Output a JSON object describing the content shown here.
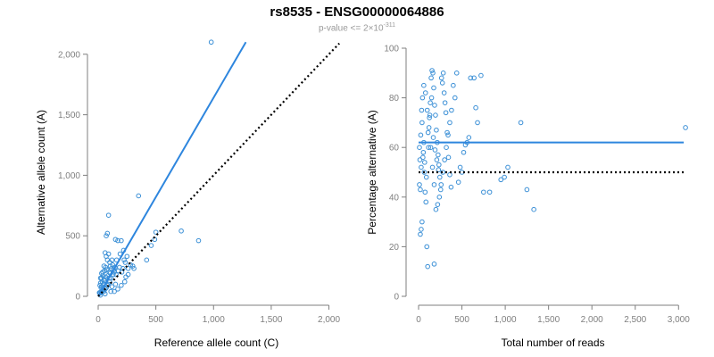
{
  "header": {
    "title": "rs8535 - ENSG00000064886",
    "subtitle_prefix": "p-value <= 2×10",
    "subtitle_exponent": "-311"
  },
  "colors": {
    "points": "#3a8fd6",
    "fit_line": "#2e86de",
    "reference_line": "#000000",
    "axis": "#7f7f7f"
  },
  "chart_data": [
    {
      "type": "scatter",
      "title": "",
      "xlabel": "Reference allele count (C)",
      "ylabel": "Alternative allele count (A)",
      "xlim": [
        0,
        2050
      ],
      "ylim": [
        0,
        2050
      ],
      "xticks": [
        0,
        500,
        1000,
        1500,
        2000
      ],
      "xtick_labels": [
        "0",
        "500",
        "1,000",
        "1,500",
        "2,000"
      ],
      "yticks": [
        0,
        500,
        1000,
        1500,
        2000
      ],
      "ytick_labels": [
        "0",
        "500",
        "1,000",
        "1,500",
        "2,000"
      ],
      "grid": false,
      "lines": [
        {
          "name": "fit",
          "style": "solid",
          "x": [
            0,
            1280
          ],
          "y": [
            0,
            2100
          ]
        },
        {
          "name": "expected",
          "style": "dotted",
          "x": [
            0,
            2090
          ],
          "y": [
            0,
            2090
          ]
        }
      ],
      "points": [
        [
          980,
          2100
        ],
        [
          350,
          830
        ],
        [
          720,
          540
        ],
        [
          870,
          460
        ],
        [
          500,
          530
        ],
        [
          490,
          470
        ],
        [
          460,
          420
        ],
        [
          420,
          300
        ],
        [
          90,
          670
        ],
        [
          80,
          520
        ],
        [
          70,
          500
        ],
        [
          60,
          360
        ],
        [
          50,
          250
        ],
        [
          40,
          200
        ],
        [
          30,
          150
        ],
        [
          20,
          110
        ],
        [
          30,
          80
        ],
        [
          40,
          60
        ],
        [
          50,
          40
        ],
        [
          60,
          20
        ],
        [
          20,
          10
        ],
        [
          10,
          30
        ],
        [
          100,
          280
        ],
        [
          120,
          300
        ],
        [
          150,
          470
        ],
        [
          170,
          460
        ],
        [
          200,
          460
        ],
        [
          220,
          380
        ],
        [
          250,
          330
        ],
        [
          280,
          260
        ],
        [
          300,
          250
        ],
        [
          310,
          230
        ],
        [
          190,
          350
        ],
        [
          160,
          300
        ],
        [
          140,
          200
        ],
        [
          130,
          180
        ],
        [
          110,
          150
        ],
        [
          100,
          120
        ],
        [
          90,
          100
        ],
        [
          80,
          90
        ],
        [
          70,
          70
        ],
        [
          60,
          60
        ],
        [
          45,
          55
        ],
        [
          35,
          45
        ],
        [
          25,
          35
        ],
        [
          15,
          25
        ],
        [
          55,
          210
        ],
        [
          65,
          240
        ],
        [
          75,
          220
        ],
        [
          95,
          200
        ],
        [
          105,
          250
        ],
        [
          115,
          230
        ],
        [
          125,
          260
        ],
        [
          135,
          220
        ],
        [
          145,
          240
        ],
        [
          155,
          180
        ],
        [
          175,
          210
        ],
        [
          185,
          240
        ],
        [
          205,
          200
        ],
        [
          215,
          230
        ],
        [
          225,
          300
        ],
        [
          235,
          280
        ],
        [
          240,
          160
        ],
        [
          260,
          230
        ],
        [
          170,
          60
        ],
        [
          140,
          40
        ],
        [
          120,
          80
        ],
        [
          150,
          100
        ],
        [
          110,
          40
        ],
        [
          200,
          90
        ],
        [
          230,
          120
        ],
        [
          260,
          180
        ],
        [
          30,
          190
        ],
        [
          40,
          170
        ],
        [
          50,
          140
        ],
        [
          20,
          150
        ],
        [
          15,
          90
        ],
        [
          25,
          70
        ],
        [
          35,
          120
        ],
        [
          45,
          100
        ],
        [
          55,
          130
        ],
        [
          65,
          160
        ],
        [
          85,
          170
        ],
        [
          95,
          150
        ],
        [
          105,
          190
        ],
        [
          70,
          330
        ],
        [
          80,
          300
        ],
        [
          90,
          350
        ]
      ]
    },
    {
      "type": "scatter",
      "title": "",
      "xlabel": "Total number of reads",
      "ylabel": "Percentage alternative (A)",
      "xlim": [
        0,
        3100
      ],
      "ylim": [
        0,
        100
      ],
      "xticks": [
        0,
        500,
        1000,
        1500,
        2000,
        2500,
        3000
      ],
      "xtick_labels": [
        "0",
        "500",
        "1,000",
        "1,500",
        "2,000",
        "2,500",
        "3,000"
      ],
      "yticks": [
        0,
        20,
        40,
        60,
        80,
        100
      ],
      "ytick_labels": [
        "0",
        "20",
        "40",
        "60",
        "80",
        "100"
      ],
      "grid": false,
      "lines": [
        {
          "name": "fit",
          "style": "solid",
          "x": [
            0,
            3060
          ],
          "y": [
            62,
            62
          ]
        },
        {
          "name": "expected",
          "style": "dotted",
          "x": [
            0,
            3060
          ],
          "y": [
            50,
            50
          ]
        }
      ],
      "points": [
        [
          3080,
          68
        ],
        [
          1330,
          35
        ],
        [
          1250,
          43
        ],
        [
          1180,
          70
        ],
        [
          1030,
          52
        ],
        [
          990,
          48
        ],
        [
          950,
          47
        ],
        [
          820,
          42
        ],
        [
          750,
          42
        ],
        [
          720,
          89
        ],
        [
          680,
          70
        ],
        [
          660,
          76
        ],
        [
          640,
          88
        ],
        [
          600,
          88
        ],
        [
          580,
          64
        ],
        [
          560,
          62
        ],
        [
          540,
          61
        ],
        [
          520,
          58
        ],
        [
          500,
          50
        ],
        [
          480,
          52
        ],
        [
          460,
          46
        ],
        [
          440,
          90
        ],
        [
          420,
          80
        ],
        [
          400,
          85
        ],
        [
          380,
          75
        ],
        [
          360,
          70
        ],
        [
          340,
          65
        ],
        [
          320,
          60
        ],
        [
          300,
          55
        ],
        [
          280,
          50
        ],
        [
          260,
          45
        ],
        [
          240,
          40
        ],
        [
          220,
          37
        ],
        [
          200,
          35
        ],
        [
          180,
          45
        ],
        [
          160,
          52
        ],
        [
          140,
          60
        ],
        [
          120,
          68
        ],
        [
          100,
          75
        ],
        [
          80,
          82
        ],
        [
          60,
          85
        ],
        [
          40,
          30
        ],
        [
          30,
          27
        ],
        [
          20,
          25
        ],
        [
          10,
          45
        ],
        [
          15,
          55
        ],
        [
          25,
          65
        ],
        [
          35,
          75
        ],
        [
          45,
          80
        ],
        [
          55,
          58
        ],
        [
          65,
          50
        ],
        [
          75,
          42
        ],
        [
          85,
          38
        ],
        [
          95,
          20
        ],
        [
          105,
          12
        ],
        [
          115,
          60
        ],
        [
          125,
          72
        ],
        [
          135,
          78
        ],
        [
          145,
          88
        ],
        [
          155,
          91
        ],
        [
          165,
          90
        ],
        [
          175,
          84
        ],
        [
          185,
          77
        ],
        [
          195,
          73
        ],
        [
          205,
          67
        ],
        [
          215,
          62
        ],
        [
          225,
          57
        ],
        [
          235,
          53
        ],
        [
          245,
          48
        ],
        [
          255,
          43
        ],
        [
          265,
          88
        ],
        [
          275,
          86
        ],
        [
          285,
          90
        ],
        [
          295,
          82
        ],
        [
          305,
          78
        ],
        [
          315,
          74
        ],
        [
          330,
          66
        ],
        [
          345,
          56
        ],
        [
          360,
          49
        ],
        [
          375,
          44
        ],
        [
          180,
          13
        ],
        [
          60,
          62
        ],
        [
          40,
          70
        ],
        [
          30,
          52
        ],
        [
          20,
          43
        ],
        [
          10,
          60
        ],
        [
          50,
          56
        ],
        [
          70,
          54
        ],
        [
          90,
          48
        ],
        [
          110,
          66
        ],
        [
          130,
          73
        ],
        [
          150,
          80
        ],
        [
          170,
          64
        ],
        [
          190,
          59
        ],
        [
          210,
          55
        ],
        [
          230,
          51
        ]
      ]
    }
  ]
}
